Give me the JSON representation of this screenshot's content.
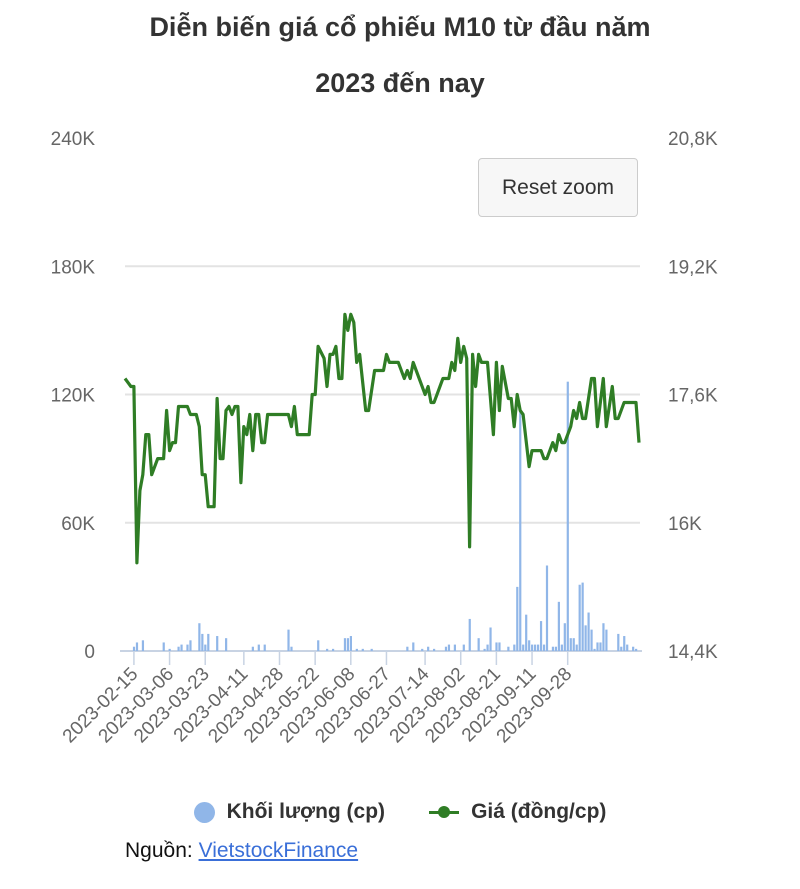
{
  "chart_data": {
    "type": "bar+line",
    "title_line1": "Diễn biến giá cổ phiếu M10 từ đầu năm",
    "title_line2": "2023 đến nay",
    "x_unit": "trading-day index",
    "xlim": [
      0,
      173
    ],
    "x_ticks": [
      {
        "index": 3,
        "label": "2023-02-15"
      },
      {
        "index": 15,
        "label": "2023-03-06"
      },
      {
        "index": 27,
        "label": "2023-03-23"
      },
      {
        "index": 40,
        "label": "2023-04-11"
      },
      {
        "index": 52,
        "label": "2023-04-28"
      },
      {
        "index": 64,
        "label": "2023-05-22"
      },
      {
        "index": 76,
        "label": "2023-06-08"
      },
      {
        "index": 88,
        "label": "2023-06-27"
      },
      {
        "index": 101,
        "label": "2023-07-14"
      },
      {
        "index": 113,
        "label": "2023-08-02"
      },
      {
        "index": 125,
        "label": "2023-08-21"
      },
      {
        "index": 137,
        "label": "2023-09-11"
      },
      {
        "index": 149,
        "label": "2023-09-28"
      }
    ],
    "y_left": {
      "min": 0,
      "max": 240000,
      "ticks": [
        {
          "v": 0,
          "label": "0"
        },
        {
          "v": 60000,
          "label": "60K"
        },
        {
          "v": 120000,
          "label": "120K"
        },
        {
          "v": 180000,
          "label": "180K"
        },
        {
          "v": 240000,
          "label": "240K"
        }
      ]
    },
    "y_right": {
      "min": 14400,
      "max": 20800,
      "ticks": [
        {
          "v": 14400,
          "label": "14,4K"
        },
        {
          "v": 16000,
          "label": "16K"
        },
        {
          "v": 17600,
          "label": "17,6K"
        },
        {
          "v": 19200,
          "label": "19,2K"
        },
        {
          "v": 20800,
          "label": "20,8K"
        }
      ]
    },
    "grid": true,
    "legend_position": "bottom",
    "series": [
      {
        "name": "Khối lượng (cp)",
        "type": "bar",
        "axis": "left",
        "color": "#90b6e8",
        "points": [
          [
            3,
            2000
          ],
          [
            4,
            4000
          ],
          [
            6,
            5000
          ],
          [
            13,
            4000
          ],
          [
            15,
            1000
          ],
          [
            18,
            2000
          ],
          [
            19,
            3000
          ],
          [
            21,
            3000
          ],
          [
            22,
            5000
          ],
          [
            25,
            13000
          ],
          [
            26,
            8000
          ],
          [
            27,
            3000
          ],
          [
            28,
            8000
          ],
          [
            31,
            7000
          ],
          [
            34,
            6000
          ],
          [
            43,
            2000
          ],
          [
            45,
            3000
          ],
          [
            47,
            3000
          ],
          [
            55,
            10000
          ],
          [
            56,
            2000
          ],
          [
            65,
            5000
          ],
          [
            68,
            1000
          ],
          [
            70,
            1000
          ],
          [
            74,
            6000
          ],
          [
            75,
            6000
          ],
          [
            76,
            7000
          ],
          [
            78,
            1000
          ],
          [
            80,
            1000
          ],
          [
            83,
            1000
          ],
          [
            95,
            2000
          ],
          [
            97,
            4000
          ],
          [
            100,
            1000
          ],
          [
            102,
            2000
          ],
          [
            104,
            1000
          ],
          [
            108,
            2000
          ],
          [
            109,
            3000
          ],
          [
            111,
            3000
          ],
          [
            114,
            3000
          ],
          [
            116,
            15000
          ],
          [
            119,
            6000
          ],
          [
            121,
            1000
          ],
          [
            122,
            3000
          ],
          [
            123,
            11000
          ],
          [
            125,
            4000
          ],
          [
            126,
            4000
          ],
          [
            129,
            2000
          ],
          [
            131,
            3000
          ],
          [
            132,
            30000
          ],
          [
            133,
            112000
          ],
          [
            134,
            3000
          ],
          [
            135,
            17000
          ],
          [
            136,
            5000
          ],
          [
            137,
            3000
          ],
          [
            138,
            3000
          ],
          [
            139,
            3000
          ],
          [
            140,
            14000
          ],
          [
            141,
            3000
          ],
          [
            142,
            40000
          ],
          [
            144,
            2000
          ],
          [
            145,
            2000
          ],
          [
            146,
            23000
          ],
          [
            147,
            3000
          ],
          [
            148,
            13000
          ],
          [
            149,
            126000
          ],
          [
            150,
            6000
          ],
          [
            151,
            6000
          ],
          [
            152,
            3000
          ],
          [
            153,
            31000
          ],
          [
            154,
            32000
          ],
          [
            155,
            12000
          ],
          [
            156,
            18000
          ],
          [
            157,
            10000
          ],
          [
            158,
            1000
          ],
          [
            159,
            4000
          ],
          [
            160,
            4000
          ],
          [
            161,
            13000
          ],
          [
            162,
            10000
          ],
          [
            166,
            8000
          ],
          [
            167,
            2000
          ],
          [
            168,
            7000
          ],
          [
            169,
            3000
          ],
          [
            171,
            2000
          ],
          [
            172,
            1000
          ]
        ]
      },
      {
        "name": "Giá (đồng/cp)",
        "type": "line",
        "axis": "right",
        "color": "#2f7d25",
        "points": [
          [
            0,
            17800
          ],
          [
            2,
            17700
          ],
          [
            3,
            17700
          ],
          [
            4,
            15500
          ],
          [
            5,
            16400
          ],
          [
            6,
            16600
          ],
          [
            7,
            17100
          ],
          [
            8,
            17100
          ],
          [
            9,
            16600
          ],
          [
            11,
            16800
          ],
          [
            13,
            16800
          ],
          [
            14,
            17400
          ],
          [
            15,
            16900
          ],
          [
            16,
            17000
          ],
          [
            17,
            17000
          ],
          [
            18,
            17450
          ],
          [
            21,
            17450
          ],
          [
            22,
            17350
          ],
          [
            24,
            17350
          ],
          [
            25,
            17200
          ],
          [
            26,
            16600
          ],
          [
            27,
            16600
          ],
          [
            28,
            16200
          ],
          [
            30,
            16200
          ],
          [
            31,
            17550
          ],
          [
            32,
            16800
          ],
          [
            33,
            16800
          ],
          [
            34,
            17400
          ],
          [
            35,
            17450
          ],
          [
            36,
            17350
          ],
          [
            37,
            17450
          ],
          [
            38,
            17450
          ],
          [
            39,
            16500
          ],
          [
            40,
            17200
          ],
          [
            41,
            17100
          ],
          [
            42,
            17350
          ],
          [
            43,
            16900
          ],
          [
            44,
            17350
          ],
          [
            45,
            17350
          ],
          [
            46,
            17000
          ],
          [
            47,
            17000
          ],
          [
            48,
            17350
          ],
          [
            55,
            17350
          ],
          [
            56,
            17200
          ],
          [
            57,
            17450
          ],
          [
            58,
            17100
          ],
          [
            62,
            17100
          ],
          [
            63,
            17600
          ],
          [
            64,
            17600
          ],
          [
            65,
            18200
          ],
          [
            67,
            18050
          ],
          [
            68,
            17700
          ],
          [
            69,
            18100
          ],
          [
            70,
            18100
          ],
          [
            71,
            18200
          ],
          [
            72,
            17800
          ],
          [
            73,
            17800
          ],
          [
            74,
            18600
          ],
          [
            75,
            18400
          ],
          [
            76,
            18600
          ],
          [
            77,
            18500
          ],
          [
            78,
            18000
          ],
          [
            79,
            18100
          ],
          [
            81,
            17400
          ],
          [
            82,
            17400
          ],
          [
            84,
            17900
          ],
          [
            87,
            17900
          ],
          [
            88,
            18100
          ],
          [
            89,
            18000
          ],
          [
            92,
            18000
          ],
          [
            94,
            17800
          ],
          [
            95,
            17900
          ],
          [
            96,
            17800
          ],
          [
            97,
            18000
          ],
          [
            101,
            17600
          ],
          [
            102,
            17700
          ],
          [
            103,
            17500
          ],
          [
            104,
            17500
          ],
          [
            105,
            17600
          ],
          [
            107,
            17800
          ],
          [
            109,
            17800
          ],
          [
            110,
            18000
          ],
          [
            111,
            17900
          ],
          [
            112,
            18300
          ],
          [
            113,
            18000
          ],
          [
            114,
            18200
          ],
          [
            115,
            18050
          ],
          [
            116,
            15700
          ],
          [
            117,
            18100
          ],
          [
            118,
            17700
          ],
          [
            119,
            18100
          ],
          [
            120,
            18000
          ],
          [
            122,
            18000
          ],
          [
            124,
            17100
          ],
          [
            125,
            18000
          ],
          [
            126,
            17400
          ],
          [
            127,
            17950
          ],
          [
            129,
            17550
          ],
          [
            130,
            17550
          ],
          [
            131,
            17200
          ],
          [
            132,
            17600
          ],
          [
            133,
            17400
          ],
          [
            134,
            17350
          ],
          [
            136,
            16700
          ],
          [
            137,
            16900
          ],
          [
            140,
            16900
          ],
          [
            141,
            16800
          ],
          [
            142,
            16800
          ],
          [
            144,
            17000
          ],
          [
            145,
            16900
          ],
          [
            146,
            17100
          ],
          [
            147,
            17000
          ],
          [
            148,
            17000
          ],
          [
            150,
            17200
          ],
          [
            151,
            17400
          ],
          [
            152,
            17300
          ],
          [
            153,
            17500
          ],
          [
            154,
            17300
          ],
          [
            155,
            17300
          ],
          [
            157,
            17800
          ],
          [
            158,
            17800
          ],
          [
            159,
            17200
          ],
          [
            161,
            17800
          ],
          [
            162,
            17200
          ],
          [
            164,
            17700
          ],
          [
            165,
            17300
          ],
          [
            166,
            17300
          ],
          [
            168,
            17500
          ],
          [
            172,
            17500
          ],
          [
            173,
            17000
          ]
        ]
      }
    ]
  },
  "reset_zoom_label": "Reset zoom",
  "legend": {
    "volume": "Khối lượng (cp)",
    "price": "Giá (đồng/cp)"
  },
  "source": {
    "prefix": "Nguồn:",
    "link": "VietstockFinance"
  }
}
